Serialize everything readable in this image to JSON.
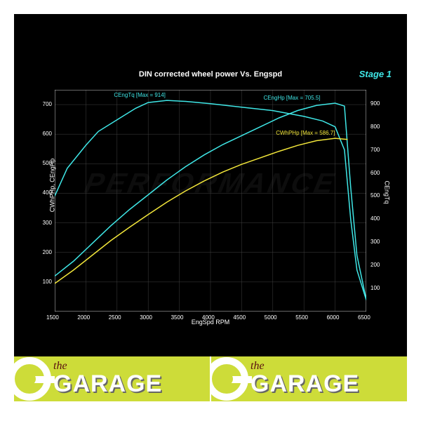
{
  "chart": {
    "type": "line",
    "title": "DIN corrected wheel power Vs. Engspd",
    "stage_label": "Stage 1",
    "watermark": "PERFORMANCE",
    "background_color": "#000000",
    "grid_color": "#404040",
    "axis_color": "#cccccc",
    "text_color": "#ffffff",
    "title_fontsize": 11,
    "label_fontsize": 9,
    "tick_fontsize": 8,
    "x": {
      "label": "EngSpd RPM",
      "min": 1500,
      "max": 6500,
      "ticks": [
        1500,
        2000,
        2500,
        3000,
        3500,
        4000,
        4500,
        5000,
        5500,
        6000,
        6500
      ]
    },
    "y_left": {
      "label": "CWhPHp, CEngHp",
      "min": 0,
      "max": 750,
      "ticks": [
        100,
        200,
        300,
        400,
        500,
        600,
        700
      ]
    },
    "y_right": {
      "label": "CEngTq",
      "min": 0,
      "max": 960,
      "ticks": [
        100,
        200,
        300,
        400,
        500,
        600,
        700,
        800,
        900
      ]
    },
    "series": [
      {
        "name": "CEngTq",
        "axis": "right",
        "color": "#3fe7e7",
        "line_width": 1.5,
        "label": "CEngTq [Max = 914]",
        "label_pos_rpm": 2900,
        "x": [
          1500,
          1700,
          2000,
          2200,
          2500,
          2800,
          3000,
          3300,
          3600,
          4000,
          4500,
          5000,
          5500,
          5800,
          6000,
          6150,
          6250,
          6350,
          6500
        ],
        "y": [
          500,
          620,
          720,
          780,
          830,
          880,
          905,
          914,
          910,
          900,
          885,
          870,
          845,
          825,
          800,
          700,
          400,
          180,
          50
        ]
      },
      {
        "name": "CEngHp",
        "axis": "left",
        "color": "#3fe7e7",
        "line_width": 1.5,
        "label": "CEngHp [Max = 705.5]",
        "label_pos_rpm": 5300,
        "x": [
          1500,
          1800,
          2100,
          2400,
          2700,
          3000,
          3300,
          3600,
          3900,
          4200,
          4500,
          4800,
          5100,
          5400,
          5700,
          6000,
          6150,
          6250,
          6350,
          6500
        ],
        "y": [
          120,
          170,
          230,
          290,
          345,
          395,
          445,
          490,
          530,
          565,
          595,
          625,
          655,
          680,
          697,
          705,
          695,
          420,
          190,
          40
        ]
      },
      {
        "name": "CWhPHp",
        "axis": "left",
        "color": "#f2e63a",
        "line_width": 1.5,
        "label": "CWhPHp [Max = 586.7]",
        "label_pos_rpm": 5500,
        "x": [
          1500,
          1800,
          2100,
          2400,
          2700,
          3000,
          3300,
          3600,
          3900,
          4200,
          4500,
          4800,
          5100,
          5400,
          5700,
          6000,
          6200
        ],
        "y": [
          95,
          140,
          190,
          240,
          285,
          328,
          370,
          408,
          442,
          472,
          498,
          520,
          542,
          562,
          578,
          586,
          582
        ]
      }
    ]
  },
  "logo": {
    "brand_the": "the",
    "brand_name": "GARAGE",
    "bg_color": "#cddc39",
    "g_color": "#ffffff"
  }
}
